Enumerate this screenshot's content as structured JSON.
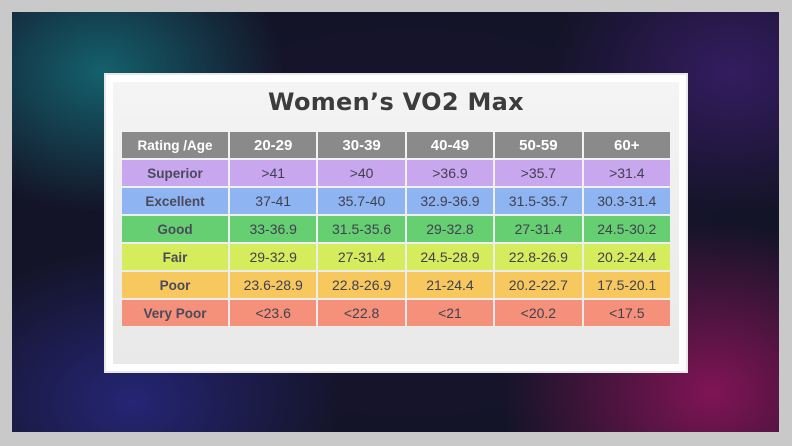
{
  "chart_data": {
    "type": "table",
    "title": "Women’s VO2 Max",
    "corner_label": "Rating /Age",
    "columns": [
      "20-29",
      "30-39",
      "40-49",
      "50-59",
      "60+"
    ],
    "rows": [
      {
        "rating": "Superior",
        "color": "#c9a7ef",
        "values": [
          ">41",
          ">40",
          ">36.9",
          ">35.7",
          ">31.4"
        ]
      },
      {
        "rating": "Excellent",
        "color": "#8fb4f2",
        "values": [
          "37-41",
          "35.7-40",
          "32.9-36.9",
          "31.5-35.7",
          "30.3-31.4"
        ]
      },
      {
        "rating": "Good",
        "color": "#66cf72",
        "values": [
          "33-36.9",
          "31.5-35.6",
          "29-32.8",
          "27-31.4",
          "24.5-30.2"
        ]
      },
      {
        "rating": "Fair",
        "color": "#d5ec5c",
        "values": [
          "29-32.9",
          "27-31.4",
          "24.5-28.9",
          "22.8-26.9",
          "20.2-24.4"
        ]
      },
      {
        "rating": "Poor",
        "color": "#f6c85e",
        "values": [
          "23.6-28.9",
          "22.8-26.9",
          "21-24.4",
          "20.2-22.7",
          "17.5-20.1"
        ]
      },
      {
        "rating": "Very Poor",
        "color": "#f5917a",
        "values": [
          "<23.6",
          "<22.8",
          "<21",
          "<20.2",
          "<17.5"
        ]
      }
    ]
  }
}
